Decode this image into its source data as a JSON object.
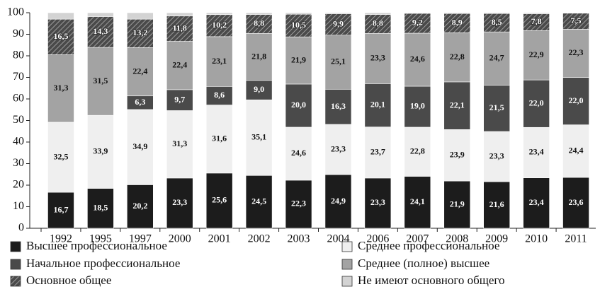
{
  "chart_data": {
    "type": "stacked_bar",
    "categories": [
      "1992",
      "1995",
      "1997",
      "2000",
      "2001",
      "2002",
      "2003",
      "2004",
      "2006",
      "2007",
      "2008",
      "2009",
      "2010",
      "2011"
    ],
    "ylim": [
      0,
      100
    ],
    "yticks": [
      0,
      10,
      20,
      30,
      40,
      50,
      60,
      70,
      80,
      90,
      100
    ],
    "grid": false,
    "legend": "bottom",
    "series": [
      {
        "name": "Высшее профессиональное",
        "color": "#1c1c1c",
        "values": [
          16.7,
          18.5,
          20.2,
          23.3,
          25.6,
          24.5,
          22.3,
          24.9,
          23.3,
          24.1,
          21.9,
          21.6,
          23.4,
          23.6
        ],
        "value_labels": [
          "16,7",
          "18,5",
          "20,2",
          "23,3",
          "25,6",
          "24,5",
          "22,3",
          "24,9",
          "23,3",
          "24,1",
          "21,9",
          "21,6",
          "23,4",
          "23,6"
        ]
      },
      {
        "name": "Среднее профессиональное",
        "color": "#efefef",
        "values": [
          32.5,
          33.9,
          34.9,
          31.3,
          31.6,
          35.1,
          24.6,
          23.3,
          23.7,
          22.8,
          23.9,
          23.3,
          23.4,
          24.4
        ],
        "value_labels": [
          "32,5",
          "33,9",
          "34,9",
          "31,3",
          "31,6",
          "35,1",
          "24,6",
          "23,3",
          "23,7",
          "22,8",
          "23,9",
          "23,3",
          "23,4",
          "24,4"
        ]
      },
      {
        "name": "Начальное профессиональное",
        "color": "#4a4a4a",
        "values": [
          null,
          null,
          6.3,
          9.7,
          8.6,
          9.0,
          20.0,
          16.3,
          20.1,
          19.0,
          22.1,
          21.5,
          22.0,
          22.0
        ],
        "value_labels": [
          null,
          null,
          "6,3",
          "9,7",
          "8,6",
          "9,0",
          "20,0",
          "16,3",
          "20,1",
          "19,0",
          "22,1",
          "21,5",
          "22,0",
          "22,0"
        ]
      },
      {
        "name": "Среднее (полное) высшее",
        "color": "#a3a3a3",
        "values": [
          31.3,
          31.5,
          22.4,
          22.4,
          23.1,
          21.8,
          21.9,
          25.1,
          23.3,
          24.6,
          22.8,
          24.7,
          22.9,
          22.3
        ],
        "value_labels": [
          "31,3",
          "31,5",
          "22,4",
          "22,4",
          "23,1",
          "21,8",
          "21,9",
          "25,1",
          "23,3",
          "24,6",
          "22,8",
          "24,7",
          "22,9",
          "22,3"
        ]
      },
      {
        "name": "Основное общее",
        "color": "#5a5a5a",
        "hatch": true,
        "values": [
          16.5,
          14.3,
          13.2,
          11.8,
          10.2,
          8.8,
          10.5,
          9.9,
          8.8,
          9.2,
          8.9,
          8.5,
          7.8,
          7.5
        ],
        "value_labels": [
          "16,5",
          "14,3",
          "13,2",
          "11,8",
          "10,2",
          "8,8",
          "10,5",
          "9,9",
          "8,8",
          "9,2",
          "8,9",
          "8,5",
          "7,8",
          "7,5"
        ]
      },
      {
        "name": "Не имеют основного общего",
        "color": "#d3d3d3",
        "values": [
          3.0,
          1.8,
          3.0,
          1.5,
          0.9,
          0.8,
          0.7,
          0.5,
          0.8,
          0.3,
          0.4,
          0.4,
          0.5,
          0.2
        ]
      }
    ]
  }
}
